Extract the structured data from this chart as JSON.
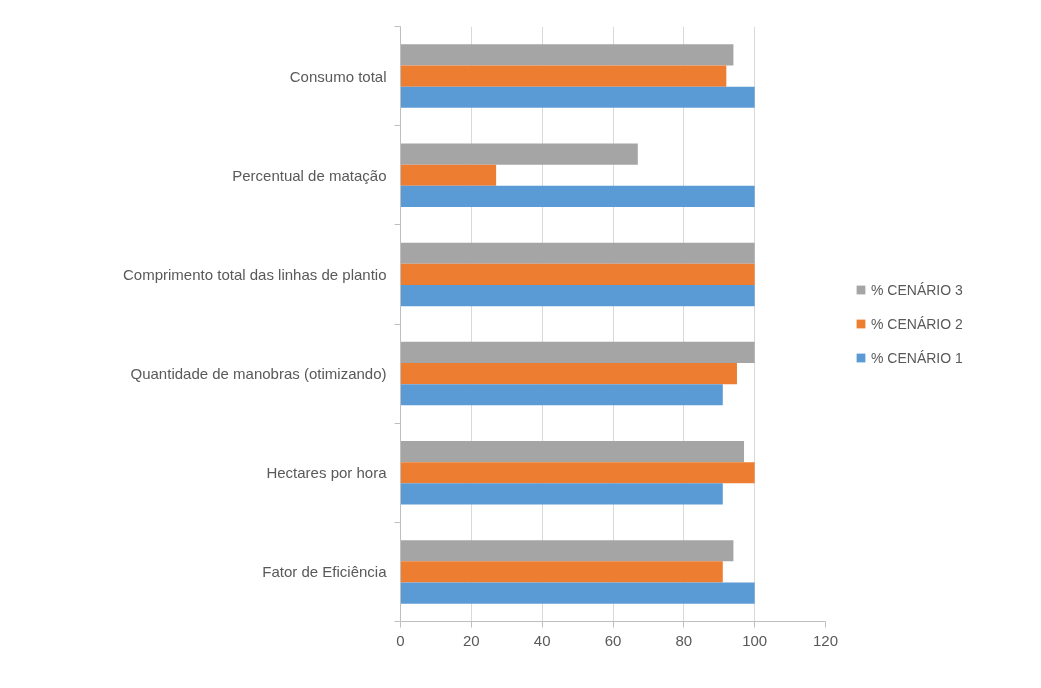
{
  "chart_data": {
    "type": "bar",
    "orientation": "horizontal",
    "categories": [
      "Consumo total",
      "Percentual de matação",
      "Comprimento total das linhas de plantio",
      "Quantidade de manobras (otimizando)",
      "Hectares por hora",
      "Fator de Eficiência"
    ],
    "series": [
      {
        "name": "% CENÁRIO 3",
        "color": "#a5a5a5",
        "values": [
          94,
          67,
          100,
          100,
          97,
          94
        ]
      },
      {
        "name": "% CENÁRIO 2",
        "color": "#ed7d31",
        "values": [
          92,
          27,
          100,
          95,
          100,
          91
        ]
      },
      {
        "name": "% CENÁRIO 1",
        "color": "#5b9bd5",
        "values": [
          100,
          100,
          100,
          91,
          91,
          100
        ]
      }
    ],
    "xlim": [
      0,
      120
    ],
    "xticks": [
      0,
      20,
      40,
      60,
      80,
      100,
      120
    ],
    "grid": "x",
    "legend": "right"
  }
}
